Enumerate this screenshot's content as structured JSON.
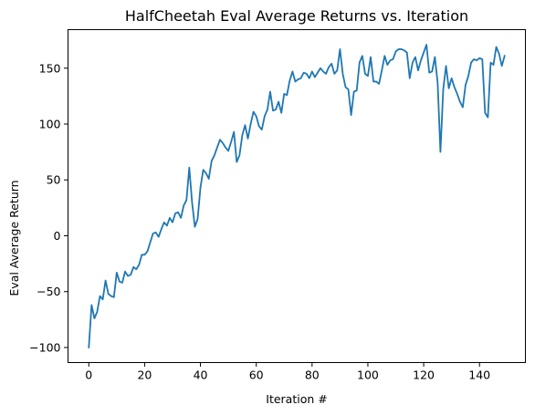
{
  "chart_data": {
    "type": "line",
    "title": "HalfCheetah Eval Average Returns vs. Iteration",
    "xlabel": "Iteration #",
    "ylabel": "Eval Average Return",
    "xlim": [
      -7.45,
      156.45
    ],
    "ylim": [
      -113.5,
      184.5
    ],
    "xticks": [
      0,
      20,
      40,
      60,
      80,
      100,
      120,
      140
    ],
    "yticks": [
      -100,
      -50,
      0,
      50,
      100,
      150
    ],
    "grid": false,
    "legend": "none",
    "series": [
      {
        "color": "#1f77b4",
        "x": [
          0,
          1,
          2,
          3,
          4,
          5,
          6,
          7,
          8,
          9,
          10,
          11,
          12,
          13,
          14,
          15,
          16,
          17,
          18,
          19,
          20,
          21,
          22,
          23,
          24,
          25,
          26,
          27,
          28,
          29,
          30,
          31,
          32,
          33,
          34,
          35,
          36,
          37,
          38,
          39,
          40,
          41,
          42,
          43,
          44,
          45,
          46,
          47,
          48,
          49,
          50,
          51,
          52,
          53,
          54,
          55,
          56,
          57,
          58,
          59,
          60,
          61,
          62,
          63,
          64,
          65,
          66,
          67,
          68,
          69,
          70,
          71,
          72,
          73,
          74,
          75,
          76,
          77,
          78,
          79,
          80,
          81,
          82,
          83,
          84,
          85,
          86,
          87,
          88,
          89,
          90,
          91,
          92,
          93,
          94,
          95,
          96,
          97,
          98,
          99,
          100,
          101,
          102,
          103,
          104,
          105,
          106,
          107,
          108,
          109,
          110,
          111,
          112,
          113,
          114,
          115,
          116,
          117,
          118,
          119,
          120,
          121,
          122,
          123,
          124,
          125,
          126,
          127,
          128,
          129,
          130,
          131,
          132,
          133,
          134,
          135,
          136,
          137,
          138,
          139,
          140,
          141,
          142,
          143,
          144,
          145,
          146,
          147,
          148,
          149
        ],
        "y": [
          -100,
          -62,
          -74,
          -68,
          -54,
          -57,
          -40,
          -52,
          -54,
          -55,
          -33,
          -41,
          -42,
          -32,
          -36,
          -35,
          -28,
          -30,
          -26,
          -17,
          -17,
          -14,
          -6,
          2,
          3,
          -1,
          6,
          12,
          9,
          16,
          12,
          20,
          21,
          16,
          27,
          32,
          61,
          30,
          8,
          15,
          43,
          59,
          56,
          51,
          67,
          72,
          79,
          86,
          83,
          79,
          76,
          84,
          93,
          66,
          72,
          90,
          99,
          87,
          100,
          111,
          107,
          98,
          95,
          107,
          113,
          129,
          112,
          113,
          120,
          110,
          127,
          126,
          139,
          147,
          138,
          140,
          141,
          146,
          145,
          141,
          147,
          142,
          146,
          150,
          147,
          145,
          151,
          154,
          145,
          148,
          167,
          145,
          133,
          131,
          108,
          129,
          130,
          155,
          161,
          145,
          143,
          160,
          138,
          138,
          136,
          148,
          161,
          153,
          157,
          158,
          165,
          167,
          167,
          166,
          164,
          141,
          155,
          160,
          148,
          157,
          164,
          171,
          146,
          147,
          160,
          137,
          75,
          131,
          152,
          132,
          141,
          133,
          127,
          120,
          115,
          135,
          143,
          155,
          158,
          157,
          159,
          158,
          110,
          106,
          155,
          153,
          169,
          163,
          152,
          161
        ]
      }
    ]
  }
}
